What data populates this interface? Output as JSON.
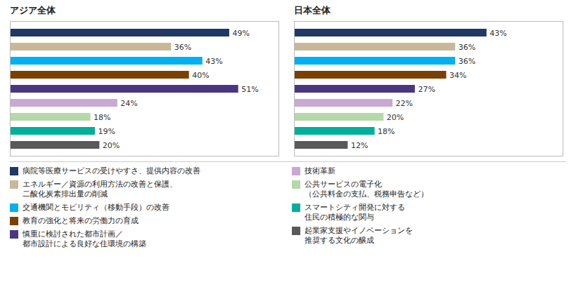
{
  "chart_data": [
    {
      "type": "bar",
      "orientation": "horizontal",
      "title": "アジア全体",
      "categories": [
        "病院等医療サービスの受けやすさ、提供内容の改善",
        "エネルギー／資源の利用方法の改善と保護、\n二酸化炭素排出量の削減",
        "交通機関とモビリティ（移動手段）の改善",
        "教育の強化と将来の労働力の育成",
        "慎重に検討された都市計画／\n都市設計による良好な住環境の構築",
        "技術革新",
        "公共サービスの電子化\n（公共料金の支払、税務申告など）",
        "スマートシティ開発に対する\n住民の積極的な関与",
        "起業家支援やイノベーションを\n推奨する文化の醸成"
      ],
      "values": [
        49,
        36,
        43,
        40,
        51,
        24,
        18,
        19,
        20
      ],
      "value_labels": [
        "49%",
        "36%",
        "43%",
        "40%",
        "51%",
        "24%",
        "18%",
        "19%",
        "20%"
      ],
      "colors": [
        "#1f3864",
        "#c8b89a",
        "#00b0f0",
        "#7b3f00",
        "#4a3580",
        "#c9a8d4",
        "#b5d8a8",
        "#00b09b",
        "#595959"
      ],
      "xlim": [
        0,
        60
      ],
      "data_labels": true,
      "tick_labels": false,
      "grid": false,
      "legend": "bottom"
    },
    {
      "type": "bar",
      "orientation": "horizontal",
      "title": "日本全体",
      "categories": [
        "病院等医療サービスの受けやすさ、提供内容の改善",
        "エネルギー／資源の利用方法の改善と保護、\n二酸化炭素排出量の削減",
        "交通機関とモビリティ（移動手段）の改善",
        "教育の強化と将来の労働力の育成",
        "慎重に検討された都市計画／\n都市設計による良好な住環境の構築",
        "技術革新",
        "公共サービスの電子化\n（公共料金の支払、税務申告など）",
        "スマートシティ開発に対する\n住民の積極的な関与",
        "起業家支援やイノベーションを\n推奨する文化の醸成"
      ],
      "values": [
        43,
        36,
        36,
        34,
        27,
        22,
        20,
        18,
        12
      ],
      "value_labels": [
        "43%",
        "36%",
        "36%",
        "34%",
        "27%",
        "22%",
        "20%",
        "18%",
        "12%"
      ],
      "colors": [
        "#1f3864",
        "#c8b89a",
        "#00b0f0",
        "#7b3f00",
        "#4a3580",
        "#c9a8d4",
        "#b5d8a8",
        "#00b09b",
        "#595959"
      ],
      "xlim": [
        0,
        60
      ],
      "data_labels": true,
      "tick_labels": false,
      "grid": false,
      "legend": "bottom"
    }
  ]
}
